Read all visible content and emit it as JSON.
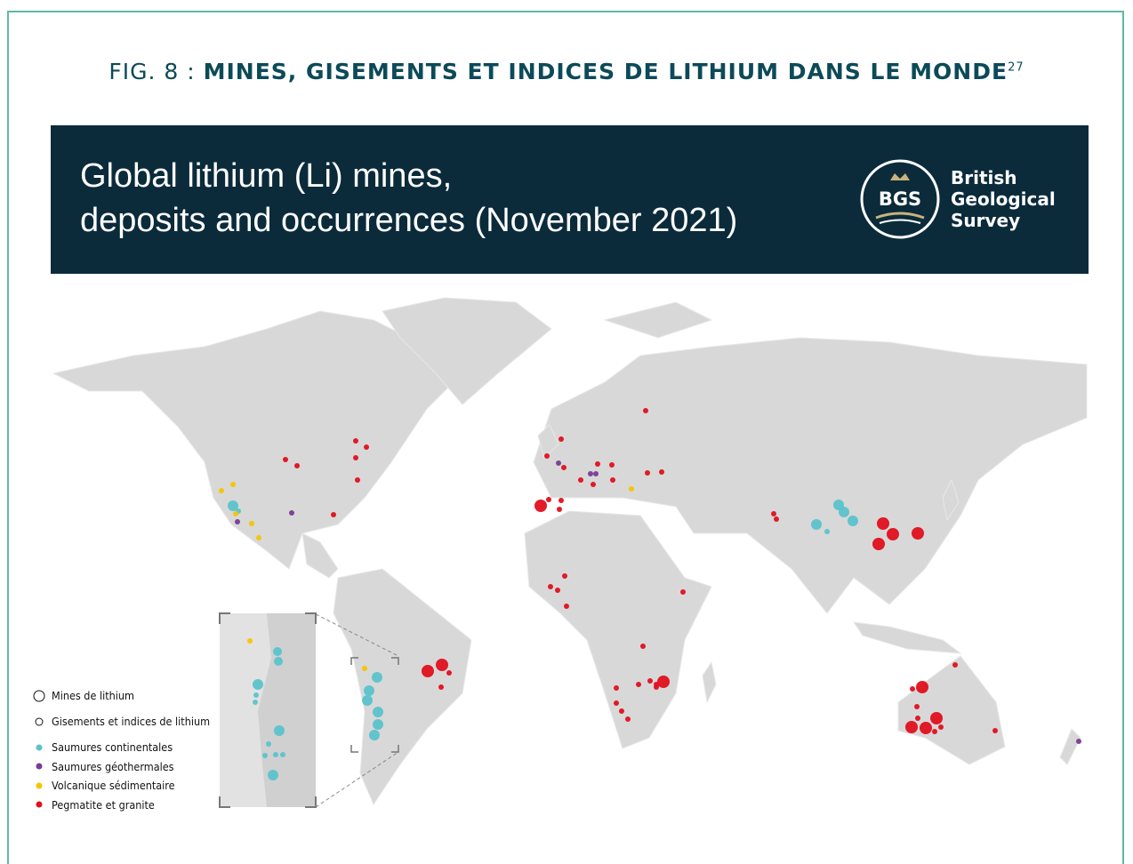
{
  "figure_title": {
    "lead": "FIG. 8 :",
    "main": "MINES, GISEMENTS ET INDICES DE LITHIUM DANS LE MONDE",
    "superscript": "27"
  },
  "banner": {
    "title_lines": [
      "Global lithium (Li) mines,",
      "deposits and occurrences (November 2021)"
    ],
    "logo": {
      "abbr": "BGS",
      "name_lines": [
        "British",
        "Geological",
        "Survey"
      ]
    }
  },
  "legend": [
    {
      "label": "Mines de lithium"
    },
    {
      "label": "Gisements et indices de lithium"
    },
    {
      "label": "Saumures continentales",
      "color": "#5bc3cc"
    },
    {
      "label": "Saumures géothermales",
      "color": "#7a3b94"
    },
    {
      "label": "Volcanique sédimentaire",
      "color": "#f5c400"
    },
    {
      "label": "Pegmatite et granite",
      "color": "#e0101e"
    }
  ]
}
